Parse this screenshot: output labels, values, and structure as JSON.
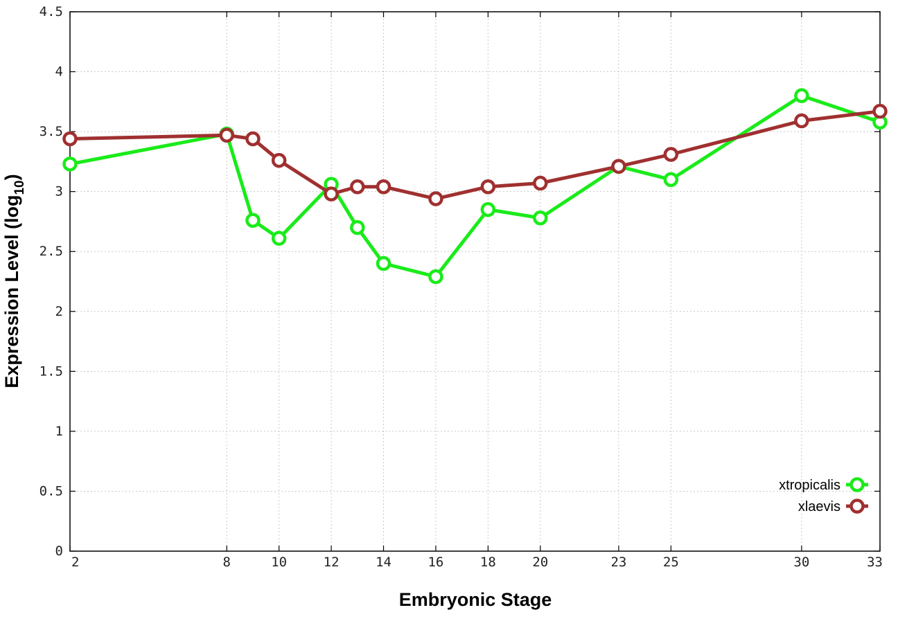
{
  "chart_data": {
    "type": "line",
    "xlabel": "Embryonic Stage",
    "ylabel": "Expression Level (log",
    "ylabel_subscript": "10",
    "ylabel_close": ")",
    "x_ticks": [
      "2",
      "8",
      "10",
      "12",
      "14",
      "16",
      "18",
      "20",
      "23",
      "25",
      "30",
      "33"
    ],
    "y_ticks": [
      "0",
      "0.5",
      "1",
      "1.5",
      "2",
      "2.5",
      "3",
      "3.5",
      "4",
      "4.5"
    ],
    "ylim": [
      0,
      4.5
    ],
    "grid": true,
    "legend_position": "bottom-right",
    "series": [
      {
        "name": "xtropicalis",
        "color": "#1aeb1a",
        "x": [
          2,
          8,
          9,
          10,
          12,
          13,
          14,
          16,
          18,
          20,
          23,
          25,
          30,
          33
        ],
        "y": [
          3.23,
          3.48,
          2.76,
          2.61,
          3.06,
          2.7,
          2.4,
          2.29,
          2.85,
          2.78,
          3.21,
          3.1,
          3.8,
          3.58
        ]
      },
      {
        "name": "xlaevis",
        "color": "#a03030",
        "x": [
          2,
          8,
          9,
          10,
          12,
          13,
          14,
          16,
          18,
          20,
          23,
          25,
          30,
          33
        ],
        "y": [
          3.44,
          3.47,
          3.44,
          3.26,
          2.98,
          3.04,
          3.04,
          2.94,
          3.04,
          3.07,
          3.21,
          3.31,
          3.59,
          3.67
        ]
      }
    ]
  }
}
